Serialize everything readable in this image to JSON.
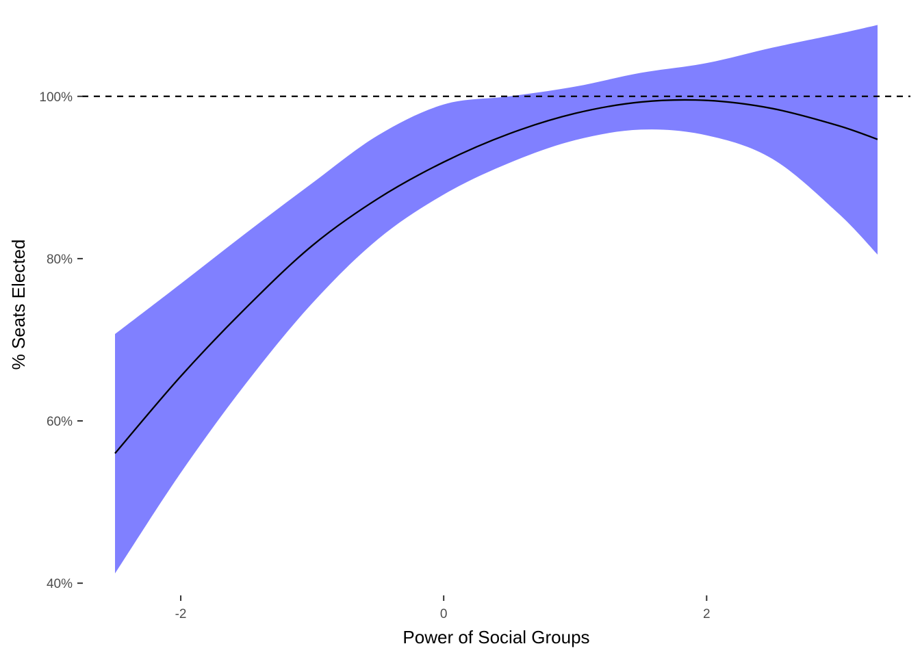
{
  "chart_data": {
    "type": "line",
    "title": "",
    "xlabel": "Power of Social Groups",
    "ylabel": "% Seats Elected",
    "xlim": [
      -2.75,
      3.55
    ],
    "ylim": [
      39,
      108.5
    ],
    "x_ticks": [
      {
        "value": -2,
        "label": "-2"
      },
      {
        "value": 0,
        "label": "0"
      },
      {
        "value": 2,
        "label": "2"
      }
    ],
    "y_ticks": [
      {
        "value": 40,
        "label": "40%"
      },
      {
        "value": 60,
        "label": "60%"
      },
      {
        "value": 80,
        "label": "80%"
      },
      {
        "value": 100,
        "label": "100%"
      }
    ],
    "grid": false,
    "reference_line": {
      "y": 100,
      "style": "dashed",
      "color": "#000000"
    },
    "band_color": "#8080ff",
    "line_color": "#000000",
    "series": [
      {
        "x": [
          -2.5,
          -2.0,
          -1.5,
          -1.0,
          -0.5,
          0.0,
          0.5,
          1.0,
          1.5,
          2.0,
          2.5,
          3.0,
          3.3
        ],
        "y": [
          56.0,
          65.5,
          74.0,
          81.6,
          87.4,
          91.9,
          95.4,
          97.9,
          99.3,
          99.5,
          98.5,
          96.4,
          94.7
        ],
        "lower": [
          41.2,
          53.6,
          64.7,
          74.5,
          82.4,
          87.9,
          91.8,
          94.6,
          95.9,
          95.2,
          92.3,
          85.6,
          80.5
        ],
        "upper": [
          70.7,
          76.9,
          83.2,
          89.3,
          95.2,
          99.0,
          100.0,
          101.2,
          102.9,
          104.1,
          106.0,
          107.7,
          108.8
        ]
      }
    ]
  }
}
